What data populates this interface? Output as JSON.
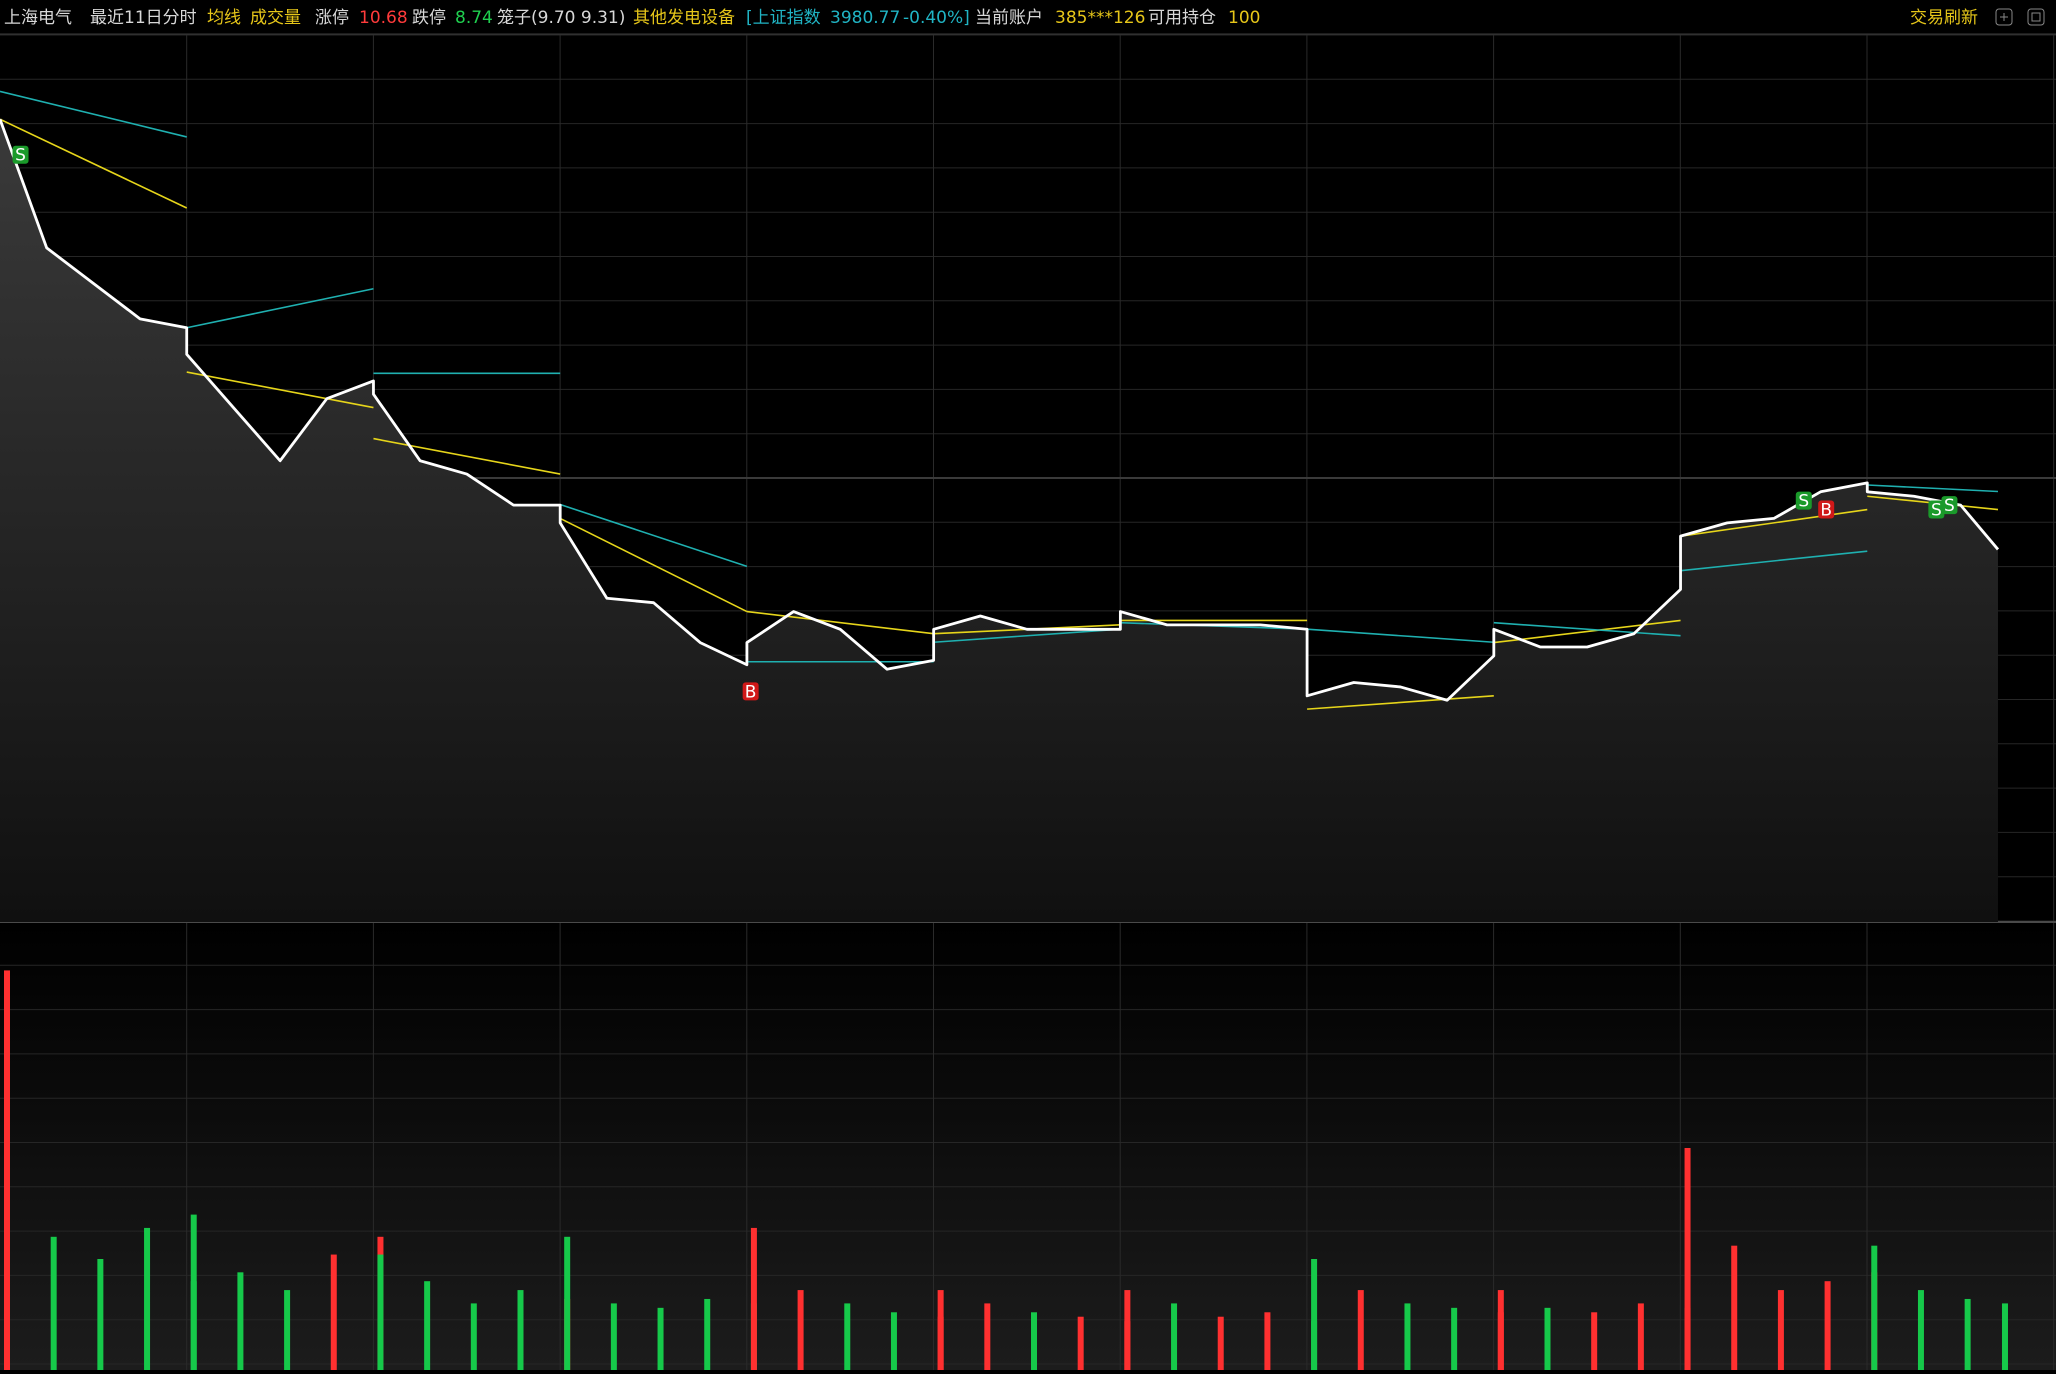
{
  "header": {
    "stock": "上海电气",
    "range": "最近11日分时",
    "avg_toggle": "均线",
    "volume_toggle": "成交量",
    "limit_up_label": "涨停",
    "limit_up": 10.68,
    "limit_down_label": "跌停",
    "limit_down": 8.74,
    "cage": "笼子(9.70 9.31)",
    "sector": "其他发电设备",
    "index_label": "[上证指数",
    "index_value": 3980.77,
    "index_change": "-0.40%]",
    "account_label": "当前账户",
    "account": "385***126",
    "position_label": "可用持仓",
    "position": 100,
    "refresh": "交易刷新"
  },
  "chart_data": {
    "type": "line",
    "xlim": [
      0,
      11
    ],
    "ylim": [
      8.66,
      10.66
    ],
    "y2lim": [
      3584,
      4402
    ],
    "vlim": [
      0,
      10000
    ],
    "series": [
      {
        "name": "价格",
        "color": "#ffffff",
        "x": [
          0,
          0.25,
          0.5,
          0.75,
          1,
          1,
          1.25,
          1.5,
          1.75,
          2,
          2,
          2.25,
          2.5,
          2.75,
          3,
          3,
          3.25,
          3.5,
          3.75,
          4,
          4,
          4.25,
          4.5,
          4.75,
          5,
          5,
          5.25,
          5.5,
          5.75,
          6,
          6,
          6.25,
          6.5,
          6.75,
          7,
          7,
          7.25,
          7.5,
          7.75,
          8,
          8,
          8.25,
          8.5,
          8.75,
          9,
          9,
          9.25,
          9.5,
          9.75,
          10,
          10,
          10.25,
          10.5,
          10.7,
          11
        ],
        "values": [
          10.47,
          10.18,
          10.1,
          10.02,
          10.0,
          9.94,
          9.82,
          9.7,
          9.84,
          9.88,
          9.85,
          9.7,
          9.67,
          9.6,
          9.6,
          9.56,
          9.39,
          9.38,
          9.29,
          9.24,
          9.29,
          9.36,
          9.32,
          9.23,
          9.25,
          9.32,
          9.35,
          9.32,
          9.32,
          9.32,
          9.36,
          9.33,
          9.33,
          9.33,
          9.32,
          9.17,
          9.2,
          9.19,
          9.16,
          9.26,
          9.32,
          9.28,
          9.28,
          9.31,
          9.41,
          9.53,
          9.56,
          9.57,
          9.63,
          9.65,
          9.63,
          9.62,
          9.6,
          9.5,
          null
        ]
      },
      {
        "name": "均线",
        "color": "#e6d51a",
        "x": [
          0,
          1,
          1,
          2,
          2,
          3,
          3,
          4,
          4,
          5,
          5,
          6,
          6,
          7,
          7,
          8,
          8,
          9,
          9,
          10,
          10,
          10.7
        ],
        "values": [
          10.47,
          10.27,
          9.9,
          9.82,
          9.75,
          9.67,
          9.57,
          9.36,
          9.36,
          9.31,
          9.31,
          9.33,
          9.34,
          9.34,
          9.14,
          9.17,
          9.29,
          9.34,
          9.53,
          9.59,
          9.62,
          9.59
        ]
      },
      {
        "name": "上证指数",
        "color": "#1fb0b0",
        "axis": "y2",
        "x": [
          0,
          1,
          1,
          2,
          2,
          3,
          3,
          4,
          4,
          5,
          5,
          6,
          6,
          7,
          7,
          8,
          8,
          9,
          9,
          10,
          10,
          10.7
        ],
        "values": [
          4350,
          4308,
          4132,
          4168,
          4090,
          4090,
          3969,
          3912,
          3824,
          3824,
          3842,
          3854,
          3860,
          3854,
          3854,
          3842,
          3860,
          3848,
          3908,
          3926,
          3987,
          3981
        ]
      }
    ],
    "volume": {
      "up_color": "#ff3030",
      "down_color": "#16c94a",
      "values": [
        9000,
        3000,
        2500,
        3200,
        2000,
        3500,
        2200,
        1800,
        2600,
        3000,
        2600,
        2000,
        1500,
        1800,
        1600,
        3000,
        1500,
        1400,
        1600,
        1500,
        3200,
        1800,
        1500,
        1300,
        1200,
        1800,
        1500,
        1300,
        1200,
        1100,
        1800,
        1500,
        1200,
        1300,
        1100,
        2500,
        1800,
        1500,
        1400,
        1300,
        1800,
        1400,
        1300,
        1500,
        1400,
        5000,
        2800,
        1800,
        2000,
        2200,
        2800,
        1800,
        1600,
        1500,
        null
      ]
    },
    "trades": [
      {
        "label": "S",
        "color": "#1a9a2a",
        "x": 0.11,
        "value": 10.39
      },
      {
        "label": "B",
        "color": "#d01818",
        "x": 4.02,
        "value": 9.18
      },
      {
        "label": "S",
        "color": "#1a9a2a",
        "x": 9.66,
        "value": 9.61
      },
      {
        "label": "B",
        "color": "#d01818",
        "x": 9.78,
        "value": 9.59
      },
      {
        "label": "S",
        "color": "#1a9a2a",
        "x": 10.37,
        "value": 9.59
      },
      {
        "label": "S",
        "color": "#1a9a2a",
        "x": 10.44,
        "value": 9.6
      }
    ]
  }
}
